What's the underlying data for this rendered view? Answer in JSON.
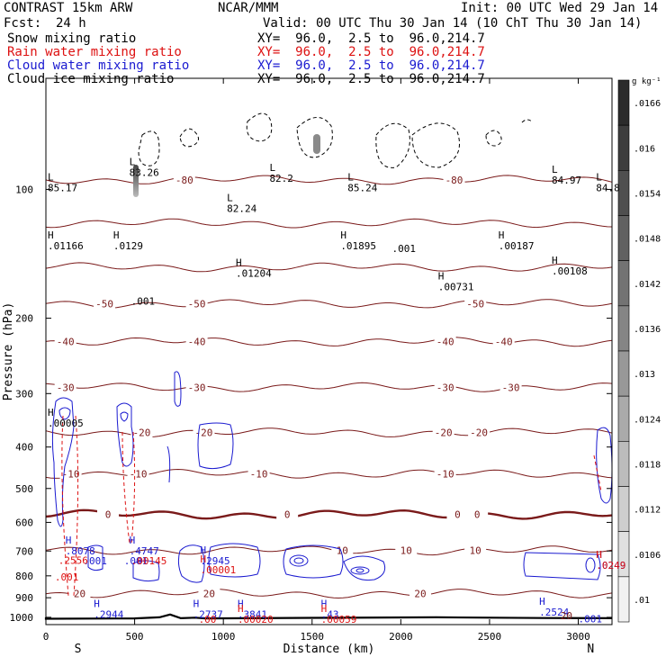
{
  "header": {
    "model": "CONTRAST 15km ARW",
    "org": "NCAR/MMM",
    "init": "Init: 00 UTC Wed 29 Jan 14",
    "fcst_label": "Fcst:",
    "fcst_value": "24 h",
    "valid": "Valid: 00 UTC Thu 30 Jan 14 (10 ChT Thu 30 Jan 14)"
  },
  "fields": [
    {
      "name": "Snow mixing ratio",
      "xy": "XY=  96.0,  2.5 to  96.0,214.7",
      "color": "#000000"
    },
    {
      "name": "Rain water mixing ratio",
      "xy": "XY=  96.0,  2.5 to  96.0,214.7",
      "color": "#dd1111"
    },
    {
      "name": "Cloud water mixing ratio",
      "xy": "XY=  96.0,  2.5 to  96.0,214.7",
      "color": "#1a1ad0"
    },
    {
      "name": "Cloud ice mixing ratio",
      "xy": "XY=  96.0,  2.5 to  96.0,214.7",
      "color": "#000000"
    }
  ],
  "chart_data": {
    "type": "cross-section contour",
    "xlabel": "Distance (km)",
    "ylabel": "Pressure (hPa)",
    "x_ticks": [
      "0",
      "500",
      "1000",
      "1500",
      "2000",
      "2500",
      "3000"
    ],
    "y_ticks": [
      "100",
      "200",
      "300",
      "400",
      "500",
      "600",
      "700",
      "800",
      "900",
      "1000"
    ],
    "xlim": [
      0,
      3190
    ],
    "ylim": [
      1040,
      55
    ],
    "y_scale": "log",
    "end_labels": {
      "left": "S",
      "right": "N"
    },
    "isotherm_color": "#7a1a1a",
    "isotherms": [
      {
        "value": -80,
        "p": 95,
        "labels": [
          {
            "x": 780,
            "text": "-80"
          },
          {
            "x": 2300,
            "text": "-80"
          }
        ]
      },
      {
        "value": -70,
        "p": 120
      },
      {
        "value": -60,
        "p": 152
      },
      {
        "value": -50,
        "p": 185,
        "labels": [
          {
            "x": 330,
            "text": "-50"
          },
          {
            "x": 850,
            "text": "-50"
          },
          {
            "x": 2420,
            "text": "-50"
          }
        ]
      },
      {
        "value": -40,
        "p": 227,
        "labels": [
          {
            "x": 110,
            "text": "-40"
          },
          {
            "x": 850,
            "text": "-40"
          },
          {
            "x": 2250,
            "text": "-40"
          },
          {
            "x": 2580,
            "text": "-40"
          }
        ]
      },
      {
        "value": -30,
        "p": 290,
        "labels": [
          {
            "x": 110,
            "text": "-30"
          },
          {
            "x": 850,
            "text": "-30"
          },
          {
            "x": 2250,
            "text": "-30"
          },
          {
            "x": 2620,
            "text": "-30"
          }
        ]
      },
      {
        "value": -20,
        "p": 370,
        "labels": [
          {
            "x": 540,
            "text": "-20"
          },
          {
            "x": 890,
            "text": "-20"
          },
          {
            "x": 2240,
            "text": "-20"
          },
          {
            "x": 2440,
            "text": "-20"
          }
        ]
      },
      {
        "value": -10,
        "p": 462,
        "labels": [
          {
            "x": 140,
            "text": "-10"
          },
          {
            "x": 520,
            "text": "-10"
          },
          {
            "x": 1200,
            "text": "-10"
          },
          {
            "x": 2250,
            "text": "-10"
          }
        ]
      },
      {
        "value": 0,
        "p": 575,
        "labels": [
          {
            "x": 350,
            "text": "0"
          },
          {
            "x": 1360,
            "text": "0"
          },
          {
            "x": 2320,
            "text": "0"
          },
          {
            "x": 2430,
            "text": "0"
          }
        ]
      },
      {
        "value": 10,
        "p": 698,
        "labels": [
          {
            "x": 1670,
            "text": "10"
          },
          {
            "x": 2030,
            "text": "10"
          },
          {
            "x": 2420,
            "text": "10"
          }
        ]
      },
      {
        "value": 20,
        "p": 880,
        "labels": [
          {
            "x": 190,
            "text": "20"
          },
          {
            "x": 920,
            "text": "20"
          },
          {
            "x": 2110,
            "text": "20"
          }
        ]
      }
    ],
    "colorbar": {
      "unit": "g kg⁻¹",
      "labels": [
        ".01",
        ".0106",
        ".0112",
        ".0118",
        ".0124",
        ".013",
        ".0136",
        ".0142",
        ".0148",
        ".0154",
        ".016",
        ".0166"
      ],
      "color_low": "#f2f2f2",
      "color_high": "#2b2b2b"
    },
    "extrema": [
      {
        "kind": "L",
        "x": 10,
        "p": 101,
        "value": "85.17",
        "color": "#000000"
      },
      {
        "kind": "L",
        "x": 470,
        "p": 93,
        "value": "83.26",
        "color": "#000000"
      },
      {
        "kind": "L",
        "x": 1020,
        "p": 113,
        "value": "82.24",
        "color": "#000000"
      },
      {
        "kind": "L",
        "x": 1260,
        "p": 96,
        "value": "82.2",
        "color": "#000000"
      },
      {
        "kind": "L",
        "x": 1700,
        "p": 101,
        "value": "85.24",
        "color": "#000000"
      },
      {
        "kind": "L",
        "x": 2850,
        "p": 97,
        "value": "84.97",
        "color": "#000000"
      },
      {
        "kind": "L",
        "x": 3100,
        "p": 101,
        "value": "84.8",
        "color": "#000000"
      },
      {
        "kind": "H",
        "x": 10,
        "p": 138,
        "value": ".01166",
        "color": "#000000"
      },
      {
        "kind": "H",
        "x": 380,
        "p": 138,
        "value": ".0129",
        "color": "#000000"
      },
      {
        "kind": "H",
        "x": 1070,
        "p": 160,
        "value": ".01204",
        "color": "#000000"
      },
      {
        "kind": "H",
        "x": 1660,
        "p": 138,
        "value": ".01895",
        "color": "#000000"
      },
      {
        "kind": "H",
        "x": 2550,
        "p": 138,
        "value": ".00187",
        "color": "#000000"
      },
      {
        "kind": "H",
        "x": 2850,
        "p": 158,
        "value": ".00108",
        "color": "#000000"
      },
      {
        "kind": "H",
        "x": 2210,
        "p": 172,
        "value": ".00731",
        "color": "#000000"
      },
      {
        "kind": "H",
        "x": 10,
        "p": 358,
        "value": ".00005",
        "color": "#000000"
      },
      {
        "kind": "H",
        "x": 110,
        "p": 712,
        "value": ".8078",
        "color": "#1a1ad0"
      },
      {
        "kind": "H",
        "x": 470,
        "p": 712,
        "value": ".4747",
        "color": "#1a1ad0"
      },
      {
        "kind": "H",
        "x": 870,
        "p": 752,
        "value": ".2945",
        "color": "#1a1ad0"
      },
      {
        "kind": "H",
        "x": 870,
        "p": 790,
        "value": ".00001",
        "color": "#dd1111"
      },
      {
        "kind": "H",
        "x": 270,
        "p": 1002,
        "value": ".2944",
        "color": "#1a1ad0"
      },
      {
        "kind": "H",
        "x": 830,
        "p": 1002,
        "value": ".2737",
        "color": "#1a1ad0"
      },
      {
        "kind": "H",
        "x": 1080,
        "p": 1002,
        "value": ".3841",
        "color": "#1a1ad0"
      },
      {
        "kind": "H",
        "x": 1080,
        "p": 1030,
        "value": ".00020",
        "color": "#dd1111"
      },
      {
        "kind": "H",
        "x": 1550,
        "p": 1002,
        "value": ".43",
        "color": "#1a1ad0"
      },
      {
        "kind": "H",
        "x": 1550,
        "p": 1030,
        "value": ".00059",
        "color": "#dd1111"
      },
      {
        "kind": "H",
        "x": 2780,
        "p": 990,
        "value": ".2524",
        "color": "#1a1ad0"
      },
      {
        "kind": "H",
        "x": 3100,
        "p": 770,
        "value": ".0249",
        "color": "#1a1ad0"
      },
      {
        "kind": "H",
        "x": 3100,
        "p": 770,
        "value": ".0249",
        "color": "#dd1111"
      }
    ],
    "misc_labels": [
      {
        "x": 480,
        "p": 186,
        "text": ".001",
        "color": "#000000"
      },
      {
        "x": 1950,
        "p": 140,
        "text": ".001",
        "color": "#000000"
      },
      {
        "x": 210,
        "p": 752,
        "text": ".001",
        "color": "#1a1ad0"
      },
      {
        "x": 440,
        "p": 752,
        "text": ".001",
        "color": "#1a1ad0"
      },
      {
        "x": 70,
        "p": 750,
        "text": ".2556",
        "color": "#dd1111"
      },
      {
        "x": 480,
        "p": 752,
        "text": ".00145",
        "color": "#dd1111"
      },
      {
        "x": 50,
        "p": 820,
        "text": ".001",
        "color": "#dd1111"
      },
      {
        "x": 860,
        "p": 1030,
        "text": ".00",
        "color": "#dd1111"
      },
      {
        "x": 3000,
        "p": 1028,
        "text": ".001",
        "color": "#1a1ad0"
      },
      {
        "x": 2900,
        "p": 1010,
        "text": "20",
        "color": "#7a1a1a"
      }
    ]
  }
}
